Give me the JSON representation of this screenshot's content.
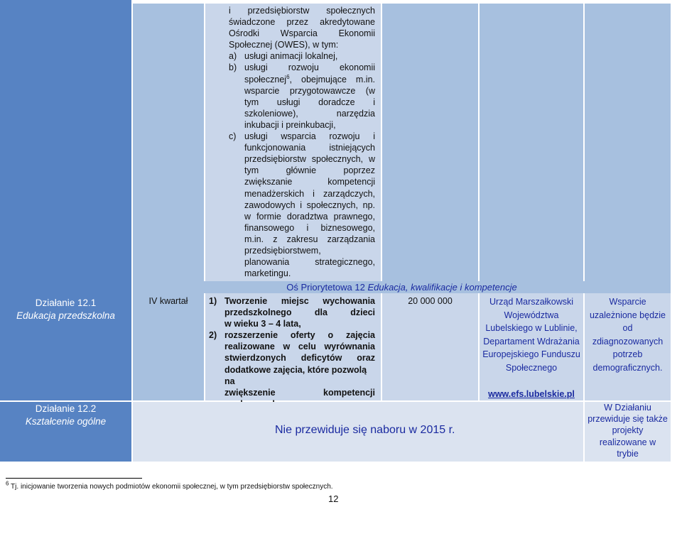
{
  "top": {
    "intro_lines": [
      "i przedsiębiorstw społecznych",
      "świadczone przez akredytowane",
      "Ośrodki Wsparcia Ekonomii",
      "Społecznej (OWES), w tym:"
    ],
    "items": [
      {
        "marker": "a)",
        "lines": [
          "usługi animacji lokalnej,"
        ]
      },
      {
        "marker": "b)",
        "lines": [
          "usługi rozwoju ekonomii"
        ],
        "tail_before": "społecznej",
        "tail_sup": "6",
        "tail_after": ", obejmujące m.in.",
        "more_lines": [
          "wsparcie przygotowawcze (w",
          "tym usługi doradcze i",
          "szkoleniowe), narzędzia",
          "inkubacji i preinkubacji,"
        ]
      },
      {
        "marker": "c)",
        "lines": [
          "usługi wsparcia rozwoju i",
          "funkcjonowania istniejących",
          "przedsiębiorstw społecznych, w",
          "tym głównie poprzez",
          "zwiększanie kompetencji",
          "menadżerskich i zarządczych,",
          "zawodowych i społecznych, np.",
          "w formie doradztwa prawnego,",
          "finansowego i biznesowego,",
          "m.in. z zakresu zarządzania",
          "przedsiębiorstwem,",
          "planowania strategicznego,",
          "marketingu."
        ]
      }
    ]
  },
  "axis_header": {
    "prefix": "Oś Priorytetowa 12 ",
    "italic": "Edukacja, kwalifikacje i kompetencje"
  },
  "action_121": {
    "name": "Działanie 12.1",
    "subtitle": "Edukacja przedszkolna",
    "quarter": "IV kwartał",
    "items": [
      {
        "marker": "1)",
        "lines": [
          "Tworzenie miejsc wychowania",
          "przedszkolnego dla dzieci",
          "w wieku 3 – 4 lata,"
        ]
      },
      {
        "marker": "2)",
        "lines": [
          "rozszerzenie oferty o zajęcia",
          "realizowane w celu wyrównania",
          "stwierdzonych deficytów oraz",
          "dodatkowe zajęcia, które pozwolą na",
          "zwiększenie kompetencji",
          "społecznych."
        ]
      }
    ],
    "amount": "20 000 000",
    "institution_lines": [
      "Urząd Marszałkowski",
      "Województwa",
      "Lubelskiego w Lublinie,",
      "Departament Wdrażania",
      "Europejskiego Funduszu",
      "Społecznego"
    ],
    "link": "www.efs.lubelskie.pl",
    "remarks_lines": [
      "Wsparcie",
      "uzależnione będzie",
      "od",
      "zdiagnozowanych",
      "potrzeb",
      "demograficznych."
    ]
  },
  "action_122": {
    "name": "Działanie 12.2",
    "subtitle": "Kształcenie ogólne",
    "notice": "Nie przewiduje się naboru w 2015 r.",
    "remarks_lines": [
      "W Działaniu",
      "przewiduje się także",
      "projekty",
      "realizowane w",
      "trybie"
    ]
  },
  "footnote": {
    "sup": "6",
    "text": " Tj. inicjowanie tworzenia nowych podmiotów ekonomii społecznej, w tym przedsiębiorstw społecznych."
  },
  "page_number": "12"
}
